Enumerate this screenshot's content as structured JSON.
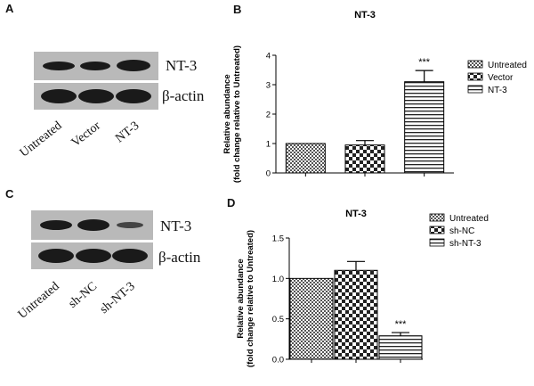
{
  "panels": {
    "a": {
      "letter": "A",
      "blot_labels": [
        "NT-3",
        "β-actin"
      ],
      "lanes": [
        "Untreated",
        "Vector",
        "NT-3"
      ]
    },
    "c": {
      "letter": "C",
      "blot_labels": [
        "NT-3",
        "β-actin"
      ],
      "lanes": [
        "Untreated",
        "sh-NC",
        "sh-NT-3"
      ]
    },
    "b": {
      "letter": "B"
    },
    "d": {
      "letter": "D"
    }
  },
  "chart_data": [
    {
      "type": "bar",
      "title": "NT-3",
      "ylabel": "Relative abundance\n(fold change relative to Untreated)",
      "categories": [
        "Untreated",
        "Vector",
        "NT-3"
      ],
      "values": [
        1.0,
        0.95,
        3.1
      ],
      "errors": [
        0,
        0.15,
        0.38
      ],
      "annotations": [
        "",
        "",
        "***"
      ],
      "ylim": [
        0,
        4
      ],
      "yticks": [
        "0",
        "1",
        "2",
        "3",
        "4"
      ],
      "legend": [
        "Untreated",
        "Vector",
        "NT-3"
      ],
      "legend_position": "top-right"
    },
    {
      "type": "bar",
      "title": "NT-3",
      "ylabel": "Relative abundance\n(fold change relative to Untreated)",
      "categories": [
        "Untreated",
        "sh-NC",
        "sh-NT-3"
      ],
      "values": [
        1.0,
        1.1,
        0.29
      ],
      "errors": [
        0,
        0.11,
        0.04
      ],
      "annotations": [
        "",
        "",
        "***"
      ],
      "ylim": [
        0,
        1.5
      ],
      "yticks": [
        "0.0",
        "0.5",
        "1.0",
        "1.5"
      ],
      "legend": [
        "Untreated",
        "sh-NC",
        "sh-NT-3"
      ],
      "legend_position": "top-right"
    }
  ]
}
